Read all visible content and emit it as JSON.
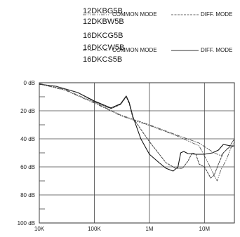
{
  "legend": {
    "group1": {
      "models": [
        "12DKBG5B",
        "12DKBW5B"
      ],
      "common_label": "COMMON MODE",
      "diff_label": "DIFF. MODE"
    },
    "group2": {
      "models": [
        "16DKCG5B",
        "16DKCW5B",
        "16DKCS5B"
      ],
      "common_label": "COMMON MODE",
      "diff_label": "DIFF. MODE"
    }
  },
  "chart_data": {
    "type": "line",
    "title": "",
    "xlabel": "",
    "ylabel": "",
    "x_scale": "log",
    "xlim": [
      10000,
      35000000
    ],
    "y_inverted": true,
    "ylim": [
      0,
      100
    ],
    "x_ticks": [
      {
        "value": 10000,
        "label": "10K"
      },
      {
        "value": 100000,
        "label": "100K"
      },
      {
        "value": 1000000,
        "label": "1M"
      },
      {
        "value": 10000000,
        "label": "10M"
      }
    ],
    "y_ticks": [
      {
        "value": 0,
        "label": "0 dB"
      },
      {
        "value": 20,
        "label": "20 dB"
      },
      {
        "value": 40,
        "label": "40 dB"
      },
      {
        "value": 60,
        "label": "60 dB"
      },
      {
        "value": 80,
        "label": "80 dB"
      },
      {
        "value": 100,
        "label": "100 dB"
      }
    ],
    "grid": "major",
    "series": [
      {
        "name": "16DKC DIFF. MODE",
        "style": "solid",
        "points": [
          [
            10000,
            1
          ],
          [
            20000,
            2.5
          ],
          [
            50000,
            7
          ],
          [
            100000,
            13
          ],
          [
            200000,
            18
          ],
          [
            300000,
            15
          ],
          [
            380000,
            9.5
          ],
          [
            430000,
            14
          ],
          [
            500000,
            24
          ],
          [
            700000,
            40
          ],
          [
            1000000,
            51
          ],
          [
            1500000,
            57
          ],
          [
            2000000,
            61
          ],
          [
            2700000,
            63
          ],
          [
            3300000,
            60
          ],
          [
            3700000,
            50
          ],
          [
            4200000,
            49
          ],
          [
            5000000,
            50.5
          ],
          [
            7000000,
            51
          ],
          [
            10000000,
            51
          ],
          [
            14000000,
            50
          ],
          [
            18000000,
            48
          ],
          [
            22000000,
            44
          ],
          [
            30000000,
            45
          ],
          [
            35000000,
            45
          ]
        ]
      },
      {
        "name": "16DKC COMMON MODE",
        "style": "dashdot",
        "points": [
          [
            10000,
            0.5
          ],
          [
            30000,
            5
          ],
          [
            100000,
            14
          ],
          [
            300000,
            23
          ],
          [
            1000000,
            30
          ],
          [
            3000000,
            37
          ],
          [
            8000000,
            43
          ],
          [
            15000000,
            50
          ],
          [
            20000000,
            52
          ],
          [
            26000000,
            47
          ],
          [
            30000000,
            46
          ],
          [
            35000000,
            45
          ]
        ]
      },
      {
        "name": "12DKB COMMON MODE",
        "style": "dashdotdot",
        "points": [
          [
            10000,
            0.8
          ],
          [
            30000,
            5.5
          ],
          [
            100000,
            14.5
          ],
          [
            300000,
            23.5
          ],
          [
            1000000,
            30.5
          ],
          [
            3000000,
            37.5
          ],
          [
            8000000,
            45
          ],
          [
            12000000,
            58
          ],
          [
            15000000,
            66
          ],
          [
            17000000,
            70
          ],
          [
            20000000,
            62
          ],
          [
            25000000,
            55
          ],
          [
            30000000,
            47
          ],
          [
            35000000,
            42
          ]
        ]
      },
      {
        "name": "12DKB DIFF. MODE",
        "style": "dashed",
        "points": [
          [
            10000,
            1.2
          ],
          [
            20000,
            2.5
          ],
          [
            50000,
            7
          ],
          [
            100000,
            13.5
          ],
          [
            200000,
            18.5
          ],
          [
            300000,
            15.5
          ],
          [
            380000,
            10
          ],
          [
            430000,
            15
          ],
          [
            500000,
            25
          ],
          [
            1000000,
            42
          ],
          [
            2000000,
            57
          ],
          [
            3000000,
            61
          ],
          [
            4000000,
            61
          ],
          [
            5000000,
            56
          ],
          [
            6000000,
            50
          ],
          [
            7000000,
            51
          ],
          [
            8000000,
            58
          ],
          [
            10000000,
            60
          ],
          [
            13000000,
            68
          ],
          [
            15000000,
            66
          ],
          [
            18000000,
            58
          ],
          [
            22000000,
            50
          ],
          [
            28000000,
            46
          ],
          [
            35000000,
            40
          ]
        ]
      }
    ]
  }
}
